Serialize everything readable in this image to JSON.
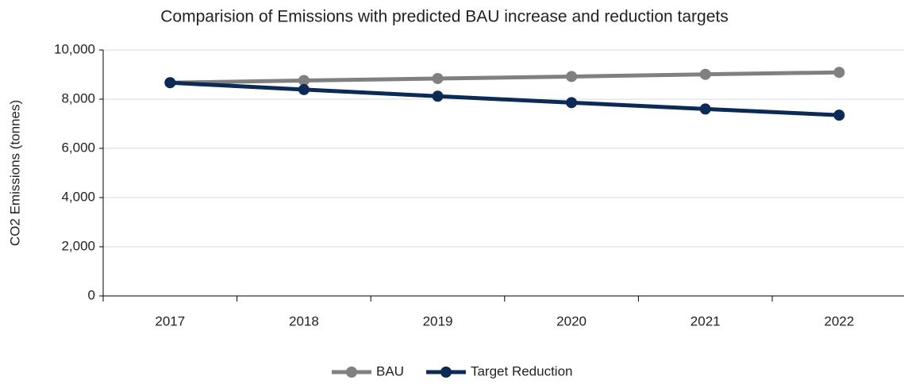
{
  "chart_data": {
    "type": "line",
    "title": "Comparision of Emissions with predicted BAU increase and reduction targets",
    "ylabel": "CO2 Emissions (tonnes)",
    "categories": [
      "2017",
      "2018",
      "2019",
      "2020",
      "2021",
      "2022"
    ],
    "series": [
      {
        "name": "BAU",
        "color": "#808080",
        "values": [
          8670,
          8760,
          8840,
          8920,
          9010,
          9090
        ]
      },
      {
        "name": "Target Reduction",
        "color": "#0b2a55",
        "values": [
          8670,
          8390,
          8120,
          7860,
          7600,
          7350
        ]
      }
    ],
    "ylim": [
      0,
      10000
    ],
    "yticks": [
      0,
      {
        "value": 2000,
        "label": "2,000"
      },
      {
        "value": 4000,
        "label": "4,000"
      },
      {
        "value": 6000,
        "label": "6,000"
      },
      {
        "value": 8000,
        "label": "8,000"
      },
      {
        "value": 10000,
        "label": "10,000"
      }
    ],
    "grid": true,
    "legend": "bottom"
  }
}
